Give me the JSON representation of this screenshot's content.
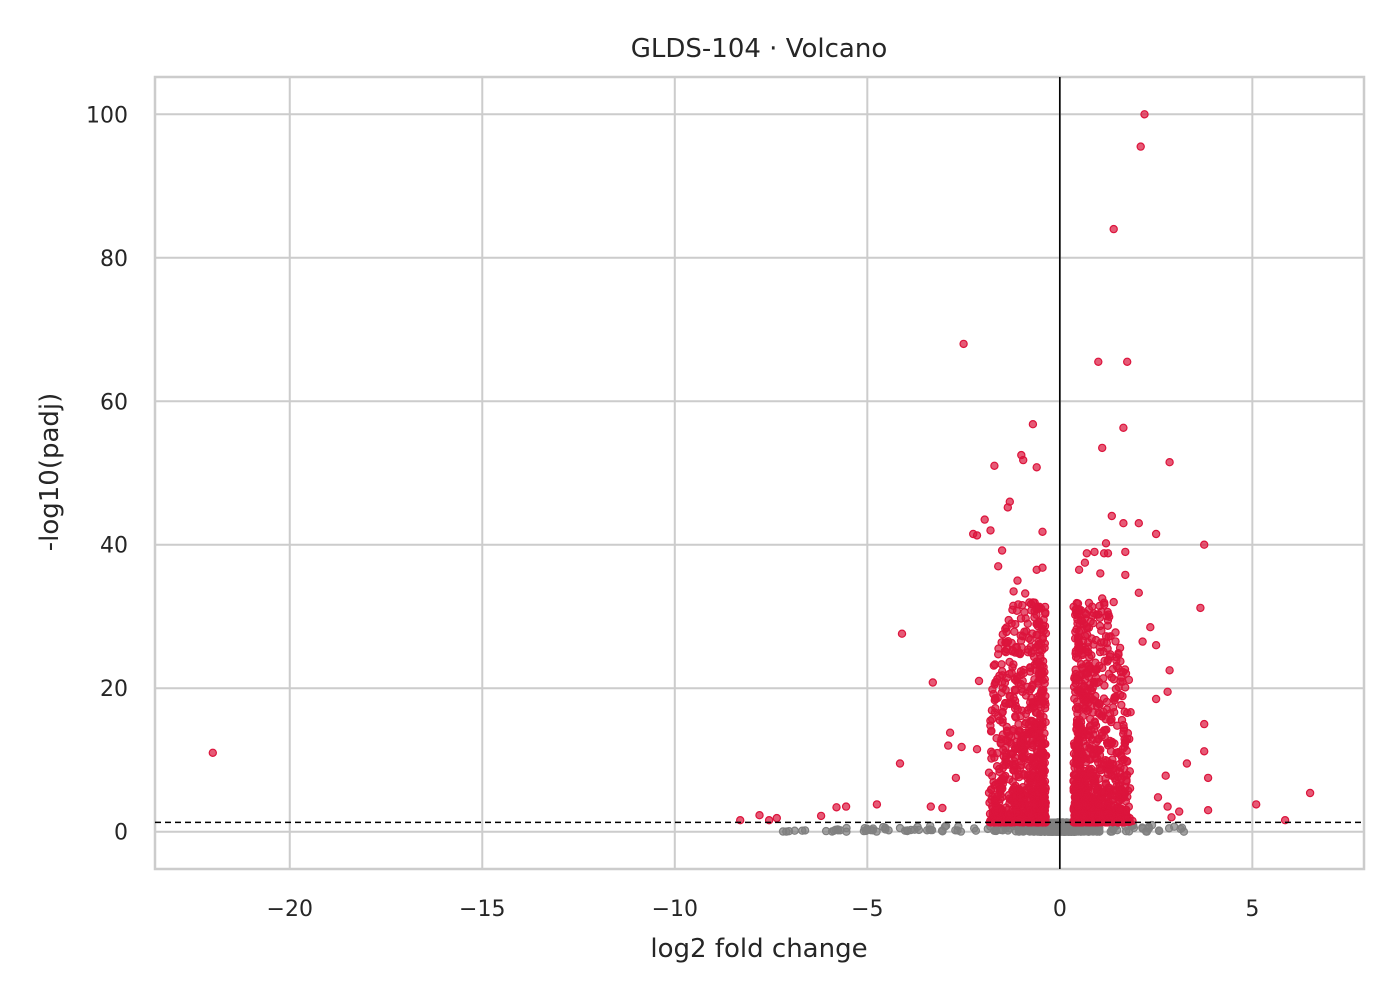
{
  "chart_data": {
    "type": "scatter",
    "title": "GLDS-104 · Volcano",
    "xlabel": "log2 fold change",
    "ylabel": "-log10(padj)",
    "xlim": [
      -23.5,
      7.9
    ],
    "ylim": [
      -5.2,
      105.2
    ],
    "xticks": [
      -20,
      -15,
      -10,
      -5,
      0,
      5
    ],
    "xtick_labels": [
      "−20",
      "−15",
      "−10",
      "−5",
      "0",
      "5"
    ],
    "yticks": [
      0,
      20,
      40,
      60,
      80,
      100
    ],
    "ytick_labels": [
      "0",
      "20",
      "40",
      "60",
      "80",
      "100"
    ],
    "grid": true,
    "legend": "none",
    "colors": {
      "significant": "#dc143c",
      "not_significant": "#808080",
      "reference_line": "#000000",
      "grid": "#cccccc",
      "spine": "#cccccc"
    },
    "reference_lines": {
      "vertical_x": 0,
      "horizontal_y": 1.3
    },
    "series": [
      {
        "key": "significant",
        "outliers": [
          [
            -22,
            11
          ],
          [
            2.2,
            100
          ],
          [
            2.1,
            95.5
          ],
          [
            1.4,
            84
          ],
          [
            -2.5,
            68
          ],
          [
            1.0,
            65.5
          ],
          [
            1.75,
            65.5
          ],
          [
            -0.7,
            56.8
          ],
          [
            1.65,
            56.3
          ],
          [
            1.1,
            53.5
          ],
          [
            -1.0,
            52.5
          ],
          [
            -0.95,
            51.8
          ],
          [
            -1.7,
            51
          ],
          [
            -0.6,
            50.8
          ],
          [
            2.85,
            51.5
          ],
          [
            -1.3,
            46
          ],
          [
            -1.35,
            45.2
          ],
          [
            -1.95,
            43.5
          ],
          [
            -2.25,
            41.5
          ],
          [
            -2.15,
            41.3
          ],
          [
            -1.8,
            42
          ],
          [
            -0.45,
            41.8
          ],
          [
            1.35,
            44
          ],
          [
            1.65,
            43
          ],
          [
            2.05,
            43
          ],
          [
            2.5,
            41.5
          ],
          [
            1.2,
            40.2
          ],
          [
            3.75,
            40
          ],
          [
            0.7,
            38.8
          ],
          [
            0.9,
            39
          ],
          [
            1.15,
            38.8
          ],
          [
            1.25,
            38.8
          ],
          [
            1.7,
            39
          ],
          [
            -1.5,
            39.2
          ],
          [
            -1.6,
            37
          ],
          [
            -0.6,
            36.5
          ],
          [
            -0.45,
            36.8
          ],
          [
            -1.1,
            35
          ],
          [
            0.5,
            36.5
          ],
          [
            0.65,
            37.5
          ],
          [
            1.05,
            36
          ],
          [
            1.7,
            35.8
          ],
          [
            2.05,
            33.3
          ],
          [
            -1.2,
            33.5
          ],
          [
            -0.9,
            33.2
          ],
          [
            1.4,
            32
          ],
          [
            1.1,
            32.5
          ],
          [
            3.65,
            31.2
          ],
          [
            -4.1,
            27.6
          ],
          [
            -3.3,
            20.8
          ],
          [
            -2.1,
            21
          ],
          [
            2.35,
            28.5
          ],
          [
            2.15,
            26.5
          ],
          [
            2.5,
            26
          ],
          [
            2.85,
            22.5
          ],
          [
            2.8,
            19.5
          ],
          [
            2.5,
            18.5
          ],
          [
            3.75,
            15
          ],
          [
            3.75,
            11.2
          ],
          [
            3.85,
            7.5
          ],
          [
            3.3,
            9.5
          ],
          [
            -4.15,
            9.5
          ],
          [
            -2.85,
            13.8
          ],
          [
            -2.9,
            12
          ],
          [
            -2.55,
            11.8
          ],
          [
            -2.15,
            11.5
          ],
          [
            -2.7,
            7.5
          ],
          [
            5.1,
            3.8
          ],
          [
            6.5,
            5.4
          ],
          [
            5.85,
            1.6
          ],
          [
            -8.3,
            1.6
          ],
          [
            -7.8,
            2.3
          ],
          [
            -7.55,
            1.6
          ],
          [
            -7.35,
            1.9
          ],
          [
            -6.2,
            2.2
          ],
          [
            -5.8,
            3.4
          ],
          [
            -5.55,
            3.5
          ],
          [
            -4.75,
            3.8
          ],
          [
            -3.35,
            3.5
          ],
          [
            -3.05,
            3.3
          ],
          [
            2.75,
            7.8
          ],
          [
            2.55,
            4.8
          ],
          [
            2.8,
            3.5
          ],
          [
            3.1,
            2.8
          ],
          [
            3.85,
            3
          ],
          [
            2.9,
            2
          ]
        ],
        "left_cloud": {
          "x_range": [
            -2.6,
            -0.15
          ],
          "y_range": [
            1.3,
            32
          ],
          "count": 900
        },
        "right_cloud": {
          "x_range": [
            0.15,
            3.2
          ],
          "y_range": [
            1.3,
            32
          ],
          "count": 950
        }
      },
      {
        "key": "not_significant",
        "cloud": {
          "x_range": [
            -7.4,
            3.3
          ],
          "y_range": [
            0,
            1.3
          ],
          "count": 1500
        }
      }
    ]
  }
}
